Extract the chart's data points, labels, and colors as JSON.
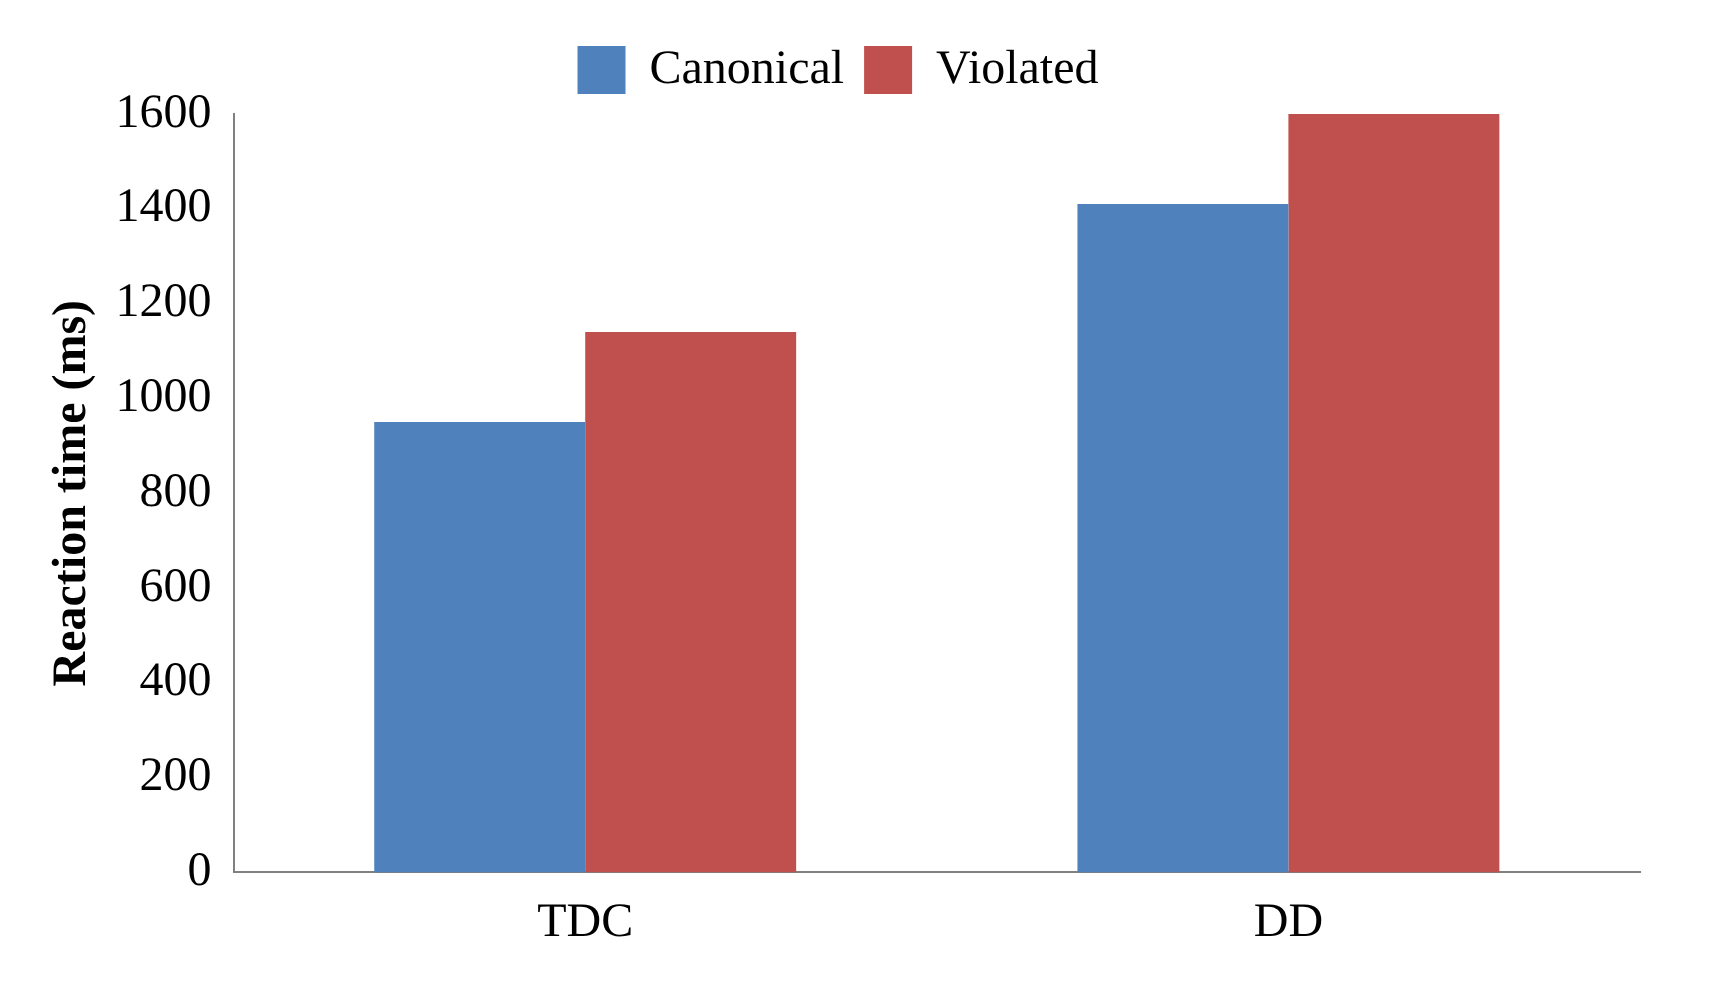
{
  "chart_data": {
    "type": "bar",
    "ylabel": "Reaction time (ms)",
    "categories": [
      "TDC",
      "DD"
    ],
    "series": [
      {
        "name": "Canonical",
        "color": "#4f81bd",
        "values": [
          950,
          1410
        ]
      },
      {
        "name": "Violated",
        "color": "#c0504d",
        "values": [
          1140,
          1600
        ]
      }
    ],
    "ylim": [
      0,
      1600
    ],
    "yticks": [
      0,
      200,
      400,
      600,
      800,
      1000,
      1200,
      1400,
      1600
    ],
    "grid": false,
    "legend": "top"
  }
}
